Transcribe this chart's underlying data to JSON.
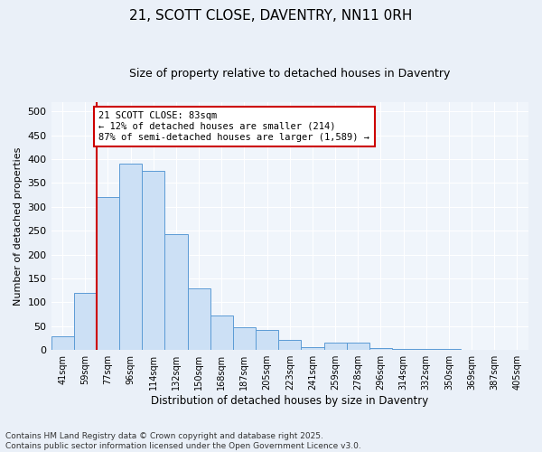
{
  "title": "21, SCOTT CLOSE, DAVENTRY, NN11 0RH",
  "subtitle": "Size of property relative to detached houses in Daventry",
  "xlabel": "Distribution of detached houses by size in Daventry",
  "ylabel": "Number of detached properties",
  "categories": [
    "41sqm",
    "59sqm",
    "77sqm",
    "96sqm",
    "114sqm",
    "132sqm",
    "150sqm",
    "168sqm",
    "187sqm",
    "205sqm",
    "223sqm",
    "241sqm",
    "259sqm",
    "278sqm",
    "296sqm",
    "314sqm",
    "332sqm",
    "350sqm",
    "369sqm",
    "387sqm",
    "405sqm"
  ],
  "values": [
    28,
    120,
    320,
    390,
    375,
    243,
    130,
    73,
    47,
    42,
    22,
    7,
    15,
    15,
    4,
    2,
    2,
    2,
    1,
    1,
    1
  ],
  "bar_color": "#cce0f5",
  "bar_edge_color": "#5b9bd5",
  "vline_x_index": 2,
  "vline_color": "#cc0000",
  "ylim": [
    0,
    520
  ],
  "yticks": [
    0,
    50,
    100,
    150,
    200,
    250,
    300,
    350,
    400,
    450,
    500
  ],
  "annotation_text": "21 SCOTT CLOSE: 83sqm\n← 12% of detached houses are smaller (214)\n87% of semi-detached houses are larger (1,589) →",
  "annotation_box_color": "#ffffff",
  "annotation_box_edge": "#cc0000",
  "footer": "Contains HM Land Registry data © Crown copyright and database right 2025.\nContains public sector information licensed under the Open Government Licence v3.0.",
  "bg_color": "#eaf0f8",
  "plot_bg_color": "#f0f5fb",
  "title_fontsize": 11,
  "subtitle_fontsize": 9
}
